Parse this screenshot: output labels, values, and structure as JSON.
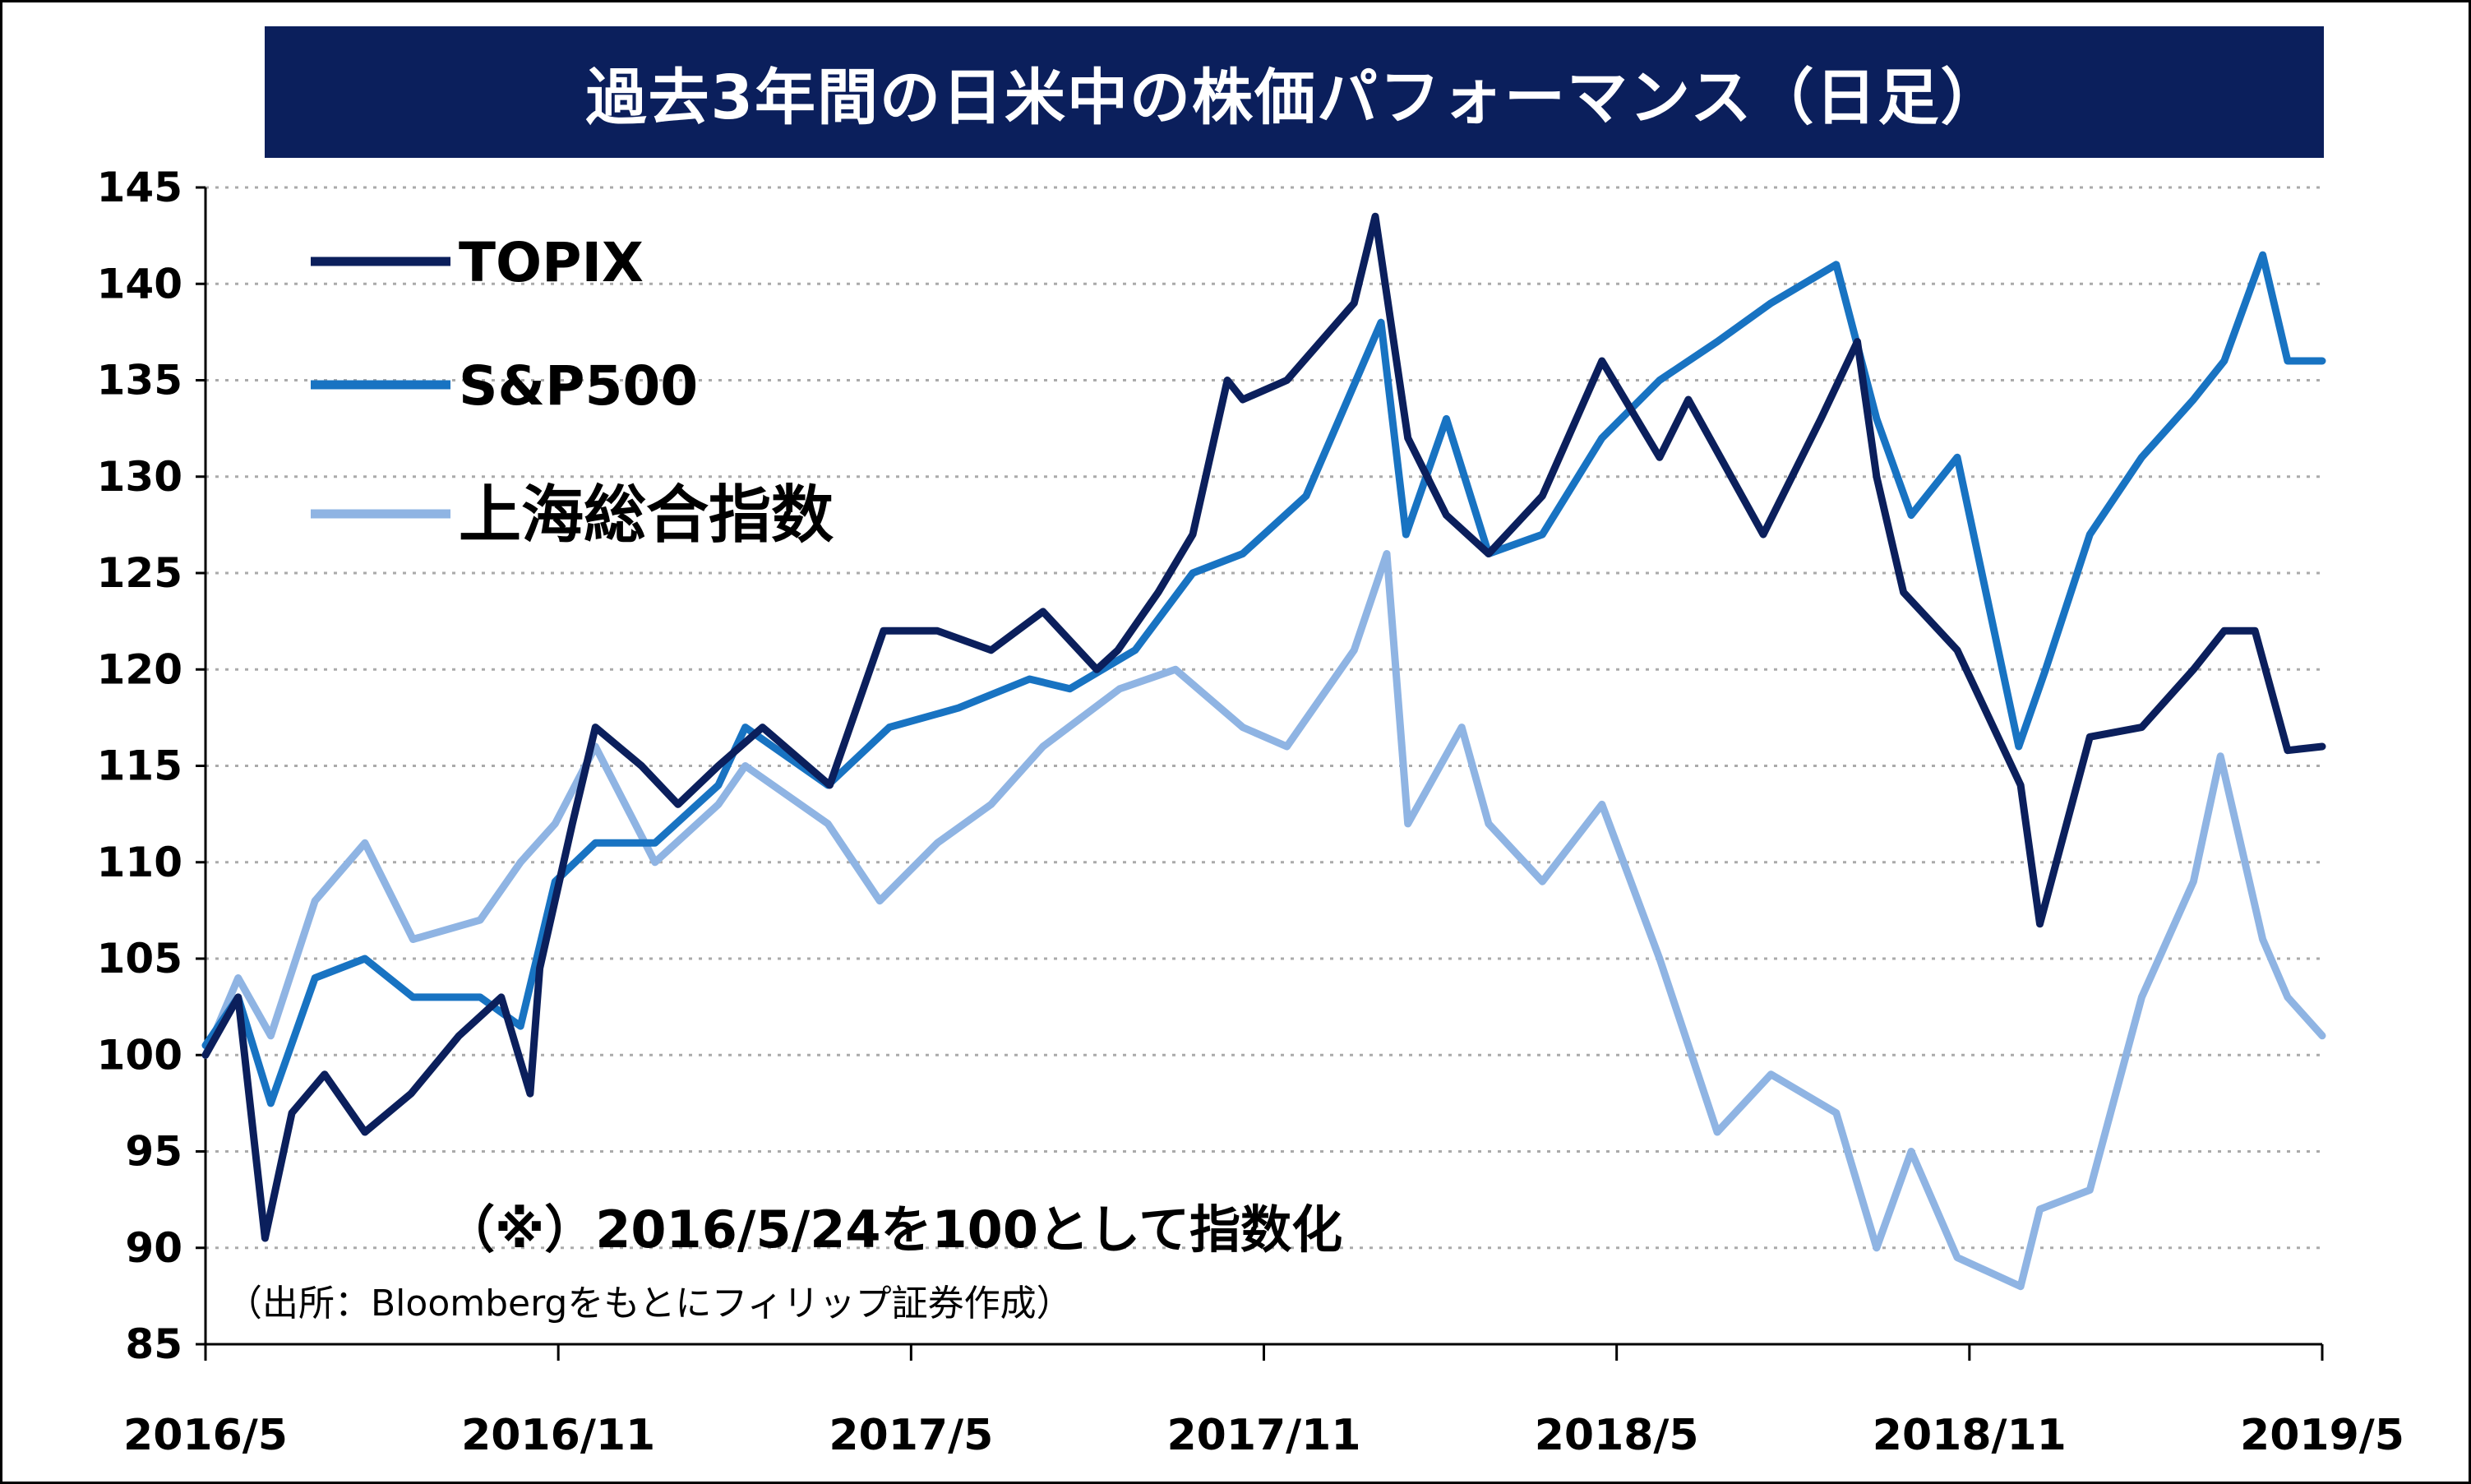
{
  "title": "過去3年間の日米中の株価パフォーマンス（日足）",
  "note": "（※）2016/5/24を100として指数化",
  "source": "（出所：Bloombergをもとにフィリップ証券作成）",
  "colors": {
    "title_bg": "#0b1f5c",
    "topix": "#0b1f5c",
    "sp500": "#1873c2",
    "shanghai": "#8fb4e3",
    "grid": "#aaaaaa"
  },
  "chart_data": {
    "type": "line",
    "title": "過去3年間の日米中の株価パフォーマンス（日足）",
    "xlabel": "",
    "ylabel": "",
    "ylim": [
      85,
      145
    ],
    "yticks": [
      "145",
      "140",
      "135",
      "130",
      "125",
      "120",
      "115",
      "110",
      "105",
      "100",
      "95",
      "90",
      "85"
    ],
    "xticks": [
      "2016/5",
      "2016/11",
      "2017/5",
      "2017/11",
      "2018/5",
      "2018/11",
      "2019/5"
    ],
    "x_range": [
      "2016-05-24",
      "2019-05-31"
    ],
    "grid": "horizontal dotted",
    "legend_placement": "top-left",
    "series": [
      {
        "name": "TOPIX",
        "x": [
          "2016-05-24",
          "2016-06-10",
          "2016-06-24",
          "2016-07-08",
          "2016-07-25",
          "2016-08-15",
          "2016-09-08",
          "2016-10-03",
          "2016-10-25",
          "2016-11-09",
          "2016-11-14",
          "2016-12-01",
          "2016-12-13",
          "2017-01-06",
          "2017-01-25",
          "2017-02-15",
          "2017-03-10",
          "2017-04-14",
          "2017-05-12",
          "2017-06-09",
          "2017-07-07",
          "2017-08-03",
          "2017-08-31",
          "2017-09-11",
          "2017-10-02",
          "2017-10-20",
          "2017-11-07",
          "2017-11-15",
          "2017-12-08",
          "2018-01-12",
          "2018-01-23",
          "2018-02-09",
          "2018-03-01",
          "2018-03-23",
          "2018-04-20",
          "2018-05-21",
          "2018-06-20",
          "2018-07-05",
          "2018-08-13",
          "2018-09-12",
          "2018-10-01",
          "2018-10-11",
          "2018-10-25",
          "2018-11-22",
          "2018-12-25",
          "2019-01-04",
          "2019-01-30",
          "2019-02-26",
          "2019-03-25",
          "2019-04-10",
          "2019-04-26",
          "2019-05-13",
          "2019-05-31"
        ],
        "values": [
          100,
          103,
          90.5,
          97,
          99,
          96,
          98,
          101,
          103,
          98,
          104.5,
          112,
          117,
          115,
          113,
          115,
          117,
          114,
          122,
          122,
          121,
          123,
          120,
          121,
          124,
          127,
          135,
          134,
          135,
          139,
          143.5,
          132,
          128,
          126,
          129,
          136,
          131,
          134,
          127,
          133,
          137,
          130,
          124,
          121,
          114,
          106.8,
          116.5,
          117,
          120,
          122,
          122,
          115.8,
          116
        ]
      },
      {
        "name": "S&P500",
        "x": [
          "2016-05-24",
          "2016-06-10",
          "2016-06-27",
          "2016-07-20",
          "2016-08-15",
          "2016-09-09",
          "2016-10-14",
          "2016-11-04",
          "2016-11-22",
          "2016-12-13",
          "2017-01-13",
          "2017-02-15",
          "2017-03-01",
          "2017-04-13",
          "2017-05-15",
          "2017-06-20",
          "2017-07-27",
          "2017-08-17",
          "2017-09-20",
          "2017-10-20",
          "2017-11-15",
          "2017-12-18",
          "2018-01-26",
          "2018-02-08",
          "2018-03-01",
          "2018-03-23",
          "2018-04-20",
          "2018-05-21",
          "2018-06-20",
          "2018-07-20",
          "2018-08-17",
          "2018-09-20",
          "2018-10-11",
          "2018-10-29",
          "2018-11-22",
          "2018-12-24",
          "2019-01-07",
          "2019-01-30",
          "2019-02-26",
          "2019-03-25",
          "2019-04-10",
          "2019-04-30",
          "2019-05-13",
          "2019-05-31"
        ],
        "values": [
          100.5,
          103,
          97.5,
          104,
          105,
          103,
          103,
          101.5,
          109,
          111,
          111,
          114,
          117,
          114,
          117,
          118,
          119.5,
          119,
          121,
          125,
          126,
          129,
          138,
          127,
          133,
          126,
          127,
          132,
          135,
          137,
          139,
          141,
          133,
          128,
          131,
          116,
          120,
          127,
          131,
          134,
          136,
          141.5,
          136,
          136
        ]
      },
      {
        "name": "上海総合指数",
        "x": [
          "2016-05-24",
          "2016-06-10",
          "2016-06-27",
          "2016-07-20",
          "2016-08-15",
          "2016-09-09",
          "2016-10-14",
          "2016-11-04",
          "2016-11-22",
          "2016-12-13",
          "2017-01-13",
          "2017-02-15",
          "2017-03-01",
          "2017-04-13",
          "2017-05-10",
          "2017-06-09",
          "2017-07-07",
          "2017-08-03",
          "2017-09-12",
          "2017-10-11",
          "2017-11-15",
          "2017-12-08",
          "2018-01-12",
          "2018-01-29",
          "2018-02-09",
          "2018-03-09",
          "2018-03-23",
          "2018-04-20",
          "2018-05-21",
          "2018-06-20",
          "2018-07-20",
          "2018-08-17",
          "2018-09-20",
          "2018-10-11",
          "2018-10-29",
          "2018-11-22",
          "2018-12-25",
          "2019-01-04",
          "2019-01-30",
          "2019-02-26",
          "2019-03-25",
          "2019-04-08",
          "2019-04-30",
          "2019-05-13",
          "2019-05-31"
        ],
        "values": [
          100,
          104,
          101,
          108,
          111,
          106,
          107,
          110,
          112,
          116,
          110,
          113,
          115,
          112,
          108,
          111,
          113,
          116,
          119,
          120,
          117,
          116,
          121,
          126,
          112,
          117,
          112,
          109,
          113,
          105,
          96,
          99,
          97,
          90,
          95,
          89.5,
          88,
          92,
          93,
          103,
          109,
          115.5,
          106,
          103,
          101
        ]
      }
    ]
  }
}
